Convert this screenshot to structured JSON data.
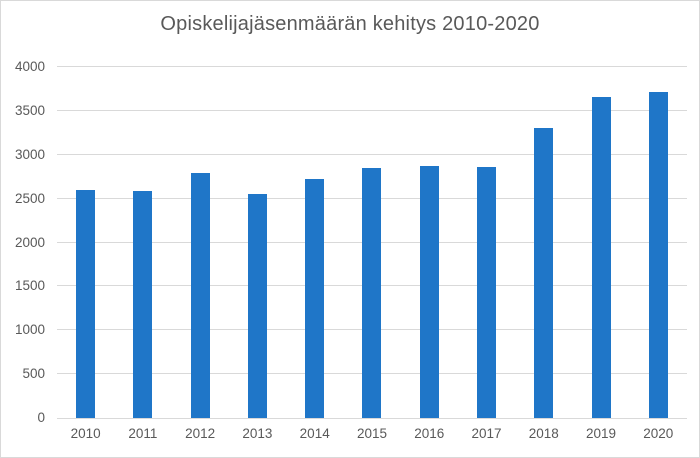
{
  "chart_data": {
    "type": "bar",
    "title": "Opiskelijajäsenmäärän kehitys 2010-2020",
    "categories": [
      "2010",
      "2011",
      "2012",
      "2013",
      "2014",
      "2015",
      "2016",
      "2017",
      "2018",
      "2019",
      "2020"
    ],
    "values": [
      2600,
      2590,
      2790,
      2550,
      2720,
      2850,
      2870,
      2860,
      3310,
      3660,
      3710
    ],
    "xlabel": "",
    "ylabel": "",
    "ylim": [
      0,
      4000
    ],
    "yticks": [
      0,
      500,
      1000,
      1500,
      2000,
      2500,
      3000,
      3500,
      4000
    ],
    "grid": "horizontal",
    "legend": "none",
    "colors": {
      "bar_fill": "#1f76c8",
      "gridline": "#d9d9d9",
      "axis_line": "#d9d9d9",
      "text": "#595959",
      "background": "#ffffff",
      "border": "#d9d9d9"
    }
  }
}
